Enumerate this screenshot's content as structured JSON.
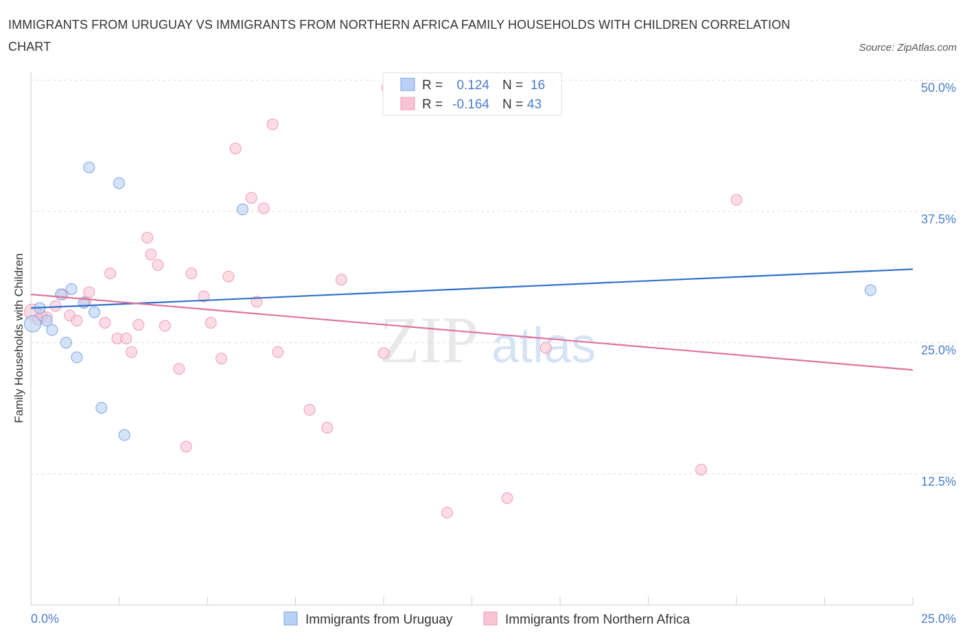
{
  "title": "IMMIGRANTS FROM URUGUAY VS IMMIGRANTS FROM NORTHERN AFRICA FAMILY HOUSEHOLDS WITH CHILDREN CORRELATION CHART",
  "source": "Source: ZipAtlas.com",
  "watermark": {
    "zip": "ZIP",
    "atlas": "atlas"
  },
  "colors": {
    "uruguay_fill": "#b8d0f4",
    "uruguay_stroke": "#7aa3e0",
    "uruguay_line": "#2f6fcb",
    "africa_fill": "#f8c4d4",
    "africa_stroke": "#ee9ab4",
    "africa_line": "#e0729c",
    "tick": "#4a7dc9",
    "grid": "#dddddd"
  },
  "legend": {
    "rows": [
      {
        "r_label": "R =",
        "r_value": "0.124",
        "n_label": "N =",
        "n_value": "16"
      },
      {
        "r_label": "R =",
        "r_value": "-0.164",
        "n_label": "N =",
        "n_value": "43"
      }
    ]
  },
  "chart_data": {
    "type": "scatter",
    "title": "IMMIGRANTS FROM URUGUAY VS IMMIGRANTS FROM NORTHERN AFRICA FAMILY HOUSEHOLDS WITH CHILDREN CORRELATION CHART",
    "xlabel": "",
    "ylabel": "Family Households with Children",
    "xlim": [
      0,
      25
    ],
    "ylim": [
      0,
      50
    ],
    "x_tick_labels": [
      "0.0%",
      "25.0%"
    ],
    "y_ticks": [
      12.5,
      25.0,
      37.5,
      50.0
    ],
    "y_tick_labels": [
      "12.5%",
      "25.0%",
      "37.5%",
      "50.0%"
    ],
    "grid": true,
    "legend_position": "top-center",
    "series": [
      {
        "name": "Immigrants from Uruguay",
        "color": "#b8d0f4",
        "points": [
          [
            0.05,
            26.8
          ],
          [
            0.25,
            28.3
          ],
          [
            0.45,
            27.1
          ],
          [
            0.6,
            26.2
          ],
          [
            0.85,
            29.6
          ],
          [
            1.0,
            25.0
          ],
          [
            1.15,
            30.1
          ],
          [
            1.3,
            23.6
          ],
          [
            1.5,
            28.8
          ],
          [
            1.65,
            41.7
          ],
          [
            1.8,
            27.9
          ],
          [
            2.0,
            18.8
          ],
          [
            2.5,
            40.2
          ],
          [
            2.65,
            16.2
          ],
          [
            6.0,
            37.7
          ],
          [
            23.8,
            30.0
          ]
        ],
        "trend": [
          [
            0,
            28.3
          ],
          [
            25,
            32.0
          ]
        ]
      },
      {
        "name": "Immigrants from Northern Africa",
        "color": "#f8c4d4",
        "points": [
          [
            0.05,
            27.9
          ],
          [
            0.2,
            27.2
          ],
          [
            0.45,
            27.4
          ],
          [
            0.7,
            28.5
          ],
          [
            0.9,
            29.6
          ],
          [
            1.1,
            27.6
          ],
          [
            1.3,
            27.1
          ],
          [
            1.55,
            28.9
          ],
          [
            1.65,
            29.8
          ],
          [
            2.1,
            26.9
          ],
          [
            2.25,
            31.6
          ],
          [
            2.45,
            25.4
          ],
          [
            2.7,
            25.4
          ],
          [
            2.85,
            24.1
          ],
          [
            3.05,
            26.7
          ],
          [
            3.3,
            35.0
          ],
          [
            3.4,
            33.4
          ],
          [
            3.6,
            32.4
          ],
          [
            3.8,
            26.6
          ],
          [
            4.2,
            22.5
          ],
          [
            4.4,
            15.1
          ],
          [
            4.55,
            31.6
          ],
          [
            4.9,
            29.4
          ],
          [
            5.1,
            26.9
          ],
          [
            5.4,
            23.5
          ],
          [
            5.6,
            31.3
          ],
          [
            5.8,
            43.5
          ],
          [
            6.25,
            38.8
          ],
          [
            6.4,
            28.9
          ],
          [
            6.6,
            37.8
          ],
          [
            6.85,
            45.8
          ],
          [
            7.0,
            24.1
          ],
          [
            7.9,
            18.6
          ],
          [
            8.4,
            16.9
          ],
          [
            8.8,
            31.0
          ],
          [
            10.0,
            24.0
          ],
          [
            10.1,
            49.3
          ],
          [
            11.8,
            8.8
          ],
          [
            13.5,
            10.2
          ],
          [
            14.6,
            24.5
          ],
          [
            19.0,
            12.9
          ],
          [
            20.0,
            38.6
          ],
          [
            0.3,
            27.6
          ]
        ],
        "trend": [
          [
            0,
            29.6
          ],
          [
            25,
            22.4
          ]
        ]
      }
    ]
  }
}
